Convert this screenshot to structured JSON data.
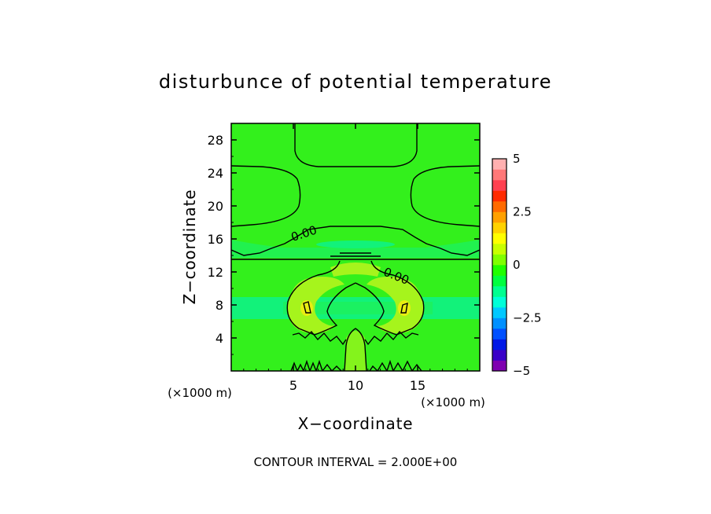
{
  "chart_data": {
    "type": "heatmap",
    "title": "disturbunce of potential temperature",
    "xlabel": "X−coordinate",
    "ylabel": "Z−coordinate",
    "x_unit": "(×1000 m)",
    "y_unit": "(×1000 m)",
    "xlim": [
      0,
      20
    ],
    "ylim": [
      0,
      30
    ],
    "x_ticks": [
      5,
      10,
      15
    ],
    "y_ticks": [
      4,
      8,
      12,
      16,
      20,
      24,
      28
    ],
    "contour_labels": [
      "0.00",
      "0.00"
    ],
    "contour_interval_text": "CONTOUR INTERVAL = 2.000E+00",
    "colorbar": {
      "min": -5,
      "max": 5,
      "ticks": [
        "5",
        "2.5",
        "0",
        "−2.5",
        "−5"
      ],
      "colors": [
        "#7f00b0",
        "#3a00c8",
        "#0018e6",
        "#0050ff",
        "#0090ff",
        "#00c8ff",
        "#00ffd8",
        "#00ff90",
        "#00ff40",
        "#20ff00",
        "#80ff00",
        "#c8ff00",
        "#ffff00",
        "#ffd200",
        "#ffa000",
        "#ff6a00",
        "#ff2a00",
        "#ff4050",
        "#ff7878",
        "#ffb0b0"
      ]
    },
    "field_colors": {
      "background": "#33f01c",
      "warm_anomaly": "#a6f41c",
      "warm_core": "#e8ee12",
      "cool_band": "#12f27a",
      "cool_band_light": "#22f050"
    }
  }
}
